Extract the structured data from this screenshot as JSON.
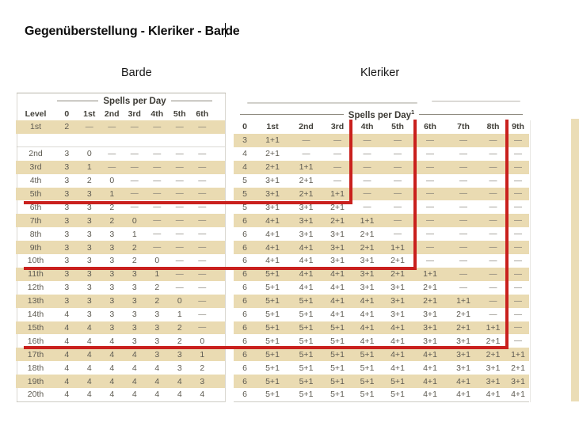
{
  "title": "Gegenüberstellung - Kleriker - Barde",
  "colors": {
    "row_beige": "#eadbb2",
    "red_line": "#c9201d"
  },
  "barde": {
    "label": "Barde",
    "header": "Spells per Day",
    "columns": [
      "Level",
      "0",
      "1st",
      "2nd",
      "3rd",
      "4th",
      "5th",
      "6th"
    ],
    "rows": [
      [
        "1st",
        "2",
        "—",
        "—",
        "—",
        "—",
        "—",
        "—"
      ],
      [
        "2nd",
        "3",
        "0",
        "—",
        "—",
        "—",
        "—",
        "—"
      ],
      [
        "3rd",
        "3",
        "1",
        "—",
        "—",
        "—",
        "—",
        "—"
      ],
      [
        "4th",
        "3",
        "2",
        "0",
        "—",
        "—",
        "—",
        "—"
      ],
      [
        "5th",
        "3",
        "3",
        "1",
        "—",
        "—",
        "—",
        "—"
      ],
      [
        "6th",
        "3",
        "3",
        "2",
        "—",
        "—",
        "—",
        "—"
      ],
      [
        "7th",
        "3",
        "3",
        "2",
        "0",
        "—",
        "—",
        "—"
      ],
      [
        "8th",
        "3",
        "3",
        "3",
        "1",
        "—",
        "—",
        "—"
      ],
      [
        "9th",
        "3",
        "3",
        "3",
        "2",
        "—",
        "—",
        "—"
      ],
      [
        "10th",
        "3",
        "3",
        "3",
        "2",
        "0",
        "—",
        "—"
      ],
      [
        "11th",
        "3",
        "3",
        "3",
        "3",
        "1",
        "—",
        "—"
      ],
      [
        "12th",
        "3",
        "3",
        "3",
        "3",
        "2",
        "—",
        "—"
      ],
      [
        "13th",
        "3",
        "3",
        "3",
        "3",
        "2",
        "0",
        "—"
      ],
      [
        "14th",
        "4",
        "3",
        "3",
        "3",
        "3",
        "1",
        "—"
      ],
      [
        "15th",
        "4",
        "4",
        "3",
        "3",
        "3",
        "2",
        "—"
      ],
      [
        "16th",
        "4",
        "4",
        "4",
        "3",
        "3",
        "2",
        "0"
      ],
      [
        "17th",
        "4",
        "4",
        "4",
        "4",
        "3",
        "3",
        "1"
      ],
      [
        "18th",
        "4",
        "4",
        "4",
        "4",
        "4",
        "3",
        "2"
      ],
      [
        "19th",
        "4",
        "4",
        "4",
        "4",
        "4",
        "4",
        "3"
      ],
      [
        "20th",
        "4",
        "4",
        "4",
        "4",
        "4",
        "4",
        "4"
      ]
    ]
  },
  "kleriker": {
    "label": "Kleriker",
    "header": "Spells per Day",
    "header_sup": "1",
    "columns": [
      "0",
      "1st",
      "2nd",
      "3rd",
      "4th",
      "5th",
      "6th",
      "7th",
      "8th",
      "9th"
    ],
    "rows": [
      [
        "3",
        "1+1",
        "—",
        "—",
        "—",
        "—",
        "—",
        "—",
        "—",
        "—"
      ],
      [
        "4",
        "2+1",
        "—",
        "—",
        "—",
        "—",
        "—",
        "—",
        "—",
        "—"
      ],
      [
        "4",
        "2+1",
        "1+1",
        "—",
        "—",
        "—",
        "—",
        "—",
        "—",
        "—"
      ],
      [
        "5",
        "3+1",
        "2+1",
        "—",
        "—",
        "—",
        "—",
        "—",
        "—",
        "—"
      ],
      [
        "5",
        "3+1",
        "2+1",
        "1+1",
        "—",
        "—",
        "—",
        "—",
        "—",
        "—"
      ],
      [
        "5",
        "3+1",
        "3+1",
        "2+1",
        "—",
        "—",
        "—",
        "—",
        "—",
        "—"
      ],
      [
        "6",
        "4+1",
        "3+1",
        "2+1",
        "1+1",
        "—",
        "—",
        "—",
        "—",
        "—"
      ],
      [
        "6",
        "4+1",
        "3+1",
        "3+1",
        "2+1",
        "—",
        "—",
        "—",
        "—",
        "—"
      ],
      [
        "6",
        "4+1",
        "4+1",
        "3+1",
        "2+1",
        "1+1",
        "—",
        "—",
        "—",
        "—"
      ],
      [
        "6",
        "4+1",
        "4+1",
        "3+1",
        "3+1",
        "2+1",
        "—",
        "—",
        "—",
        "—"
      ],
      [
        "6",
        "5+1",
        "4+1",
        "4+1",
        "3+1",
        "2+1",
        "1+1",
        "—",
        "—",
        "—"
      ],
      [
        "6",
        "5+1",
        "4+1",
        "4+1",
        "3+1",
        "3+1",
        "2+1",
        "—",
        "—",
        "—"
      ],
      [
        "6",
        "5+1",
        "5+1",
        "4+1",
        "4+1",
        "3+1",
        "2+1",
        "1+1",
        "—",
        "—"
      ],
      [
        "6",
        "5+1",
        "5+1",
        "4+1",
        "4+1",
        "3+1",
        "3+1",
        "2+1",
        "—",
        "—"
      ],
      [
        "6",
        "5+1",
        "5+1",
        "5+1",
        "4+1",
        "4+1",
        "3+1",
        "2+1",
        "1+1",
        "—"
      ],
      [
        "6",
        "5+1",
        "5+1",
        "5+1",
        "4+1",
        "4+1",
        "3+1",
        "3+1",
        "2+1",
        "—"
      ],
      [
        "6",
        "5+1",
        "5+1",
        "5+1",
        "5+1",
        "4+1",
        "4+1",
        "3+1",
        "2+1",
        "1+1"
      ],
      [
        "6",
        "5+1",
        "5+1",
        "5+1",
        "5+1",
        "4+1",
        "4+1",
        "3+1",
        "3+1",
        "2+1"
      ],
      [
        "6",
        "5+1",
        "5+1",
        "5+1",
        "5+1",
        "5+1",
        "4+1",
        "4+1",
        "3+1",
        "3+1"
      ],
      [
        "6",
        "5+1",
        "5+1",
        "5+1",
        "5+1",
        "5+1",
        "4+1",
        "4+1",
        "4+1",
        "4+1"
      ]
    ]
  }
}
